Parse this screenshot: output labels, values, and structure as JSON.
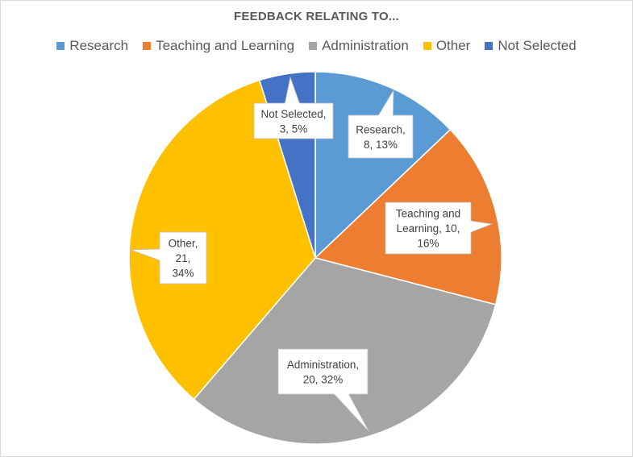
{
  "chart_data": {
    "type": "pie",
    "title": "FEEDBACK RELATING TO...",
    "legend_position": "top",
    "slices": [
      {
        "name": "Research",
        "value": 8,
        "percent": "13%",
        "color": "#5b9bd5",
        "label_lines": [
          "Research,",
          "8, 13%"
        ]
      },
      {
        "name": "Teaching and Learning",
        "value": 10,
        "percent": "16%",
        "color": "#ed7d31",
        "label_lines": [
          "Teaching and",
          "Learning, 10,",
          "16%"
        ]
      },
      {
        "name": "Administration",
        "value": 20,
        "percent": "32%",
        "color": "#a5a5a5",
        "label_lines": [
          "Administration,",
          "20, 32%"
        ]
      },
      {
        "name": "Other",
        "value": 21,
        "percent": "34%",
        "color": "#ffc000",
        "label_lines": [
          "Other,",
          "21,",
          "34%"
        ]
      },
      {
        "name": "Not Selected",
        "value": 3,
        "percent": "5%",
        "color": "#4472c4",
        "label_lines": [
          "Not Selected,",
          "3, 5%"
        ]
      }
    ]
  }
}
